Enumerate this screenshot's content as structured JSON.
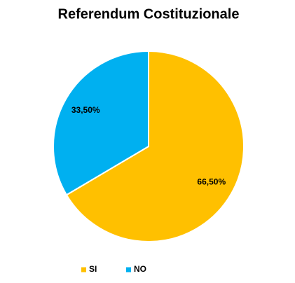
{
  "chart_data": {
    "type": "pie",
    "title": "Referendum Costituzionale",
    "categories": [
      "SI",
      "NO"
    ],
    "values": [
      66.5,
      33.5
    ],
    "value_labels": [
      "66,50%",
      "33,50%"
    ],
    "colors": [
      "#ffc000",
      "#00b0f0"
    ],
    "legend": "bottom"
  }
}
